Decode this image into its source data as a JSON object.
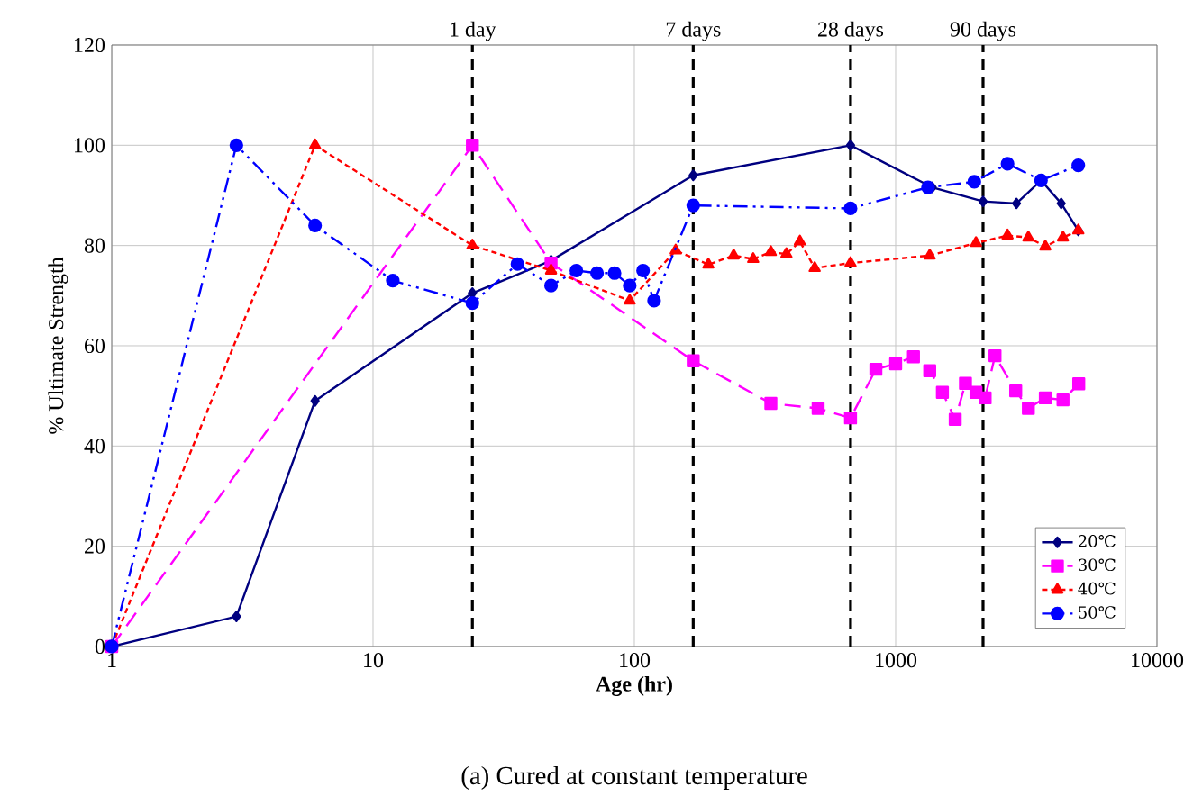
{
  "chart_data": {
    "type": "line",
    "xlabel": "**Age (hr)**",
    "ylabel": "% Ultimate Strength",
    "log": "x",
    "xlim": [
      1,
      10000
    ],
    "xticks": [
      1,
      10,
      100,
      1000,
      10000
    ],
    "ylim": [
      0,
      120
    ],
    "yticks": [
      0,
      20,
      40,
      60,
      80,
      100,
      120
    ],
    "grid": true,
    "legend": "bottom right",
    "series": [
      {
        "name": "20℃",
        "color": "#000080",
        "marker": "diamond",
        "line_style": "solid",
        "x": [
          1,
          3,
          6,
          24,
          48,
          168,
          672,
          1380,
          2160,
          2900,
          3600,
          4300,
          5000
        ],
        "values": [
          0,
          6,
          49,
          70.5,
          77,
          94,
          100,
          91.6,
          88.8,
          88.4,
          93,
          88.4,
          83
        ]
      },
      {
        "name": "30℃",
        "color": "#ff00ff",
        "marker": "square",
        "line_style": "dashed",
        "x": [
          1,
          24,
          48,
          168,
          333,
          505,
          672,
          840,
          1000,
          1170,
          1350,
          1510,
          1690,
          1850,
          2030,
          2200,
          2400,
          2880,
          3220,
          3740,
          4370,
          5020
        ],
        "values": [
          0,
          100,
          76.5,
          57,
          48.5,
          47.5,
          45.6,
          55.3,
          56.4,
          57.8,
          55,
          50.7,
          45.3,
          52.5,
          50.7,
          49.6,
          58,
          51,
          47.5,
          49.6,
          49.2,
          52.4
        ]
      },
      {
        "name": "40℃",
        "color": "#ff0000",
        "marker": "triangle",
        "line_style": "dotted",
        "x": [
          1,
          6,
          24,
          48,
          96,
          144,
          192,
          240,
          285,
          333,
          382,
          430,
          490,
          672,
          1350,
          2030,
          2680,
          3220,
          3740,
          4370,
          5000
        ],
        "values": [
          0,
          100,
          80,
          75,
          69,
          79,
          76.2,
          78,
          77.3,
          78.7,
          78.3,
          80.8,
          75.5,
          76.5,
          78,
          80.5,
          82,
          81.6,
          79.8,
          81.6,
          83
        ]
      },
      {
        "name": "50℃",
        "color": "#0000ff",
        "marker": "circle",
        "line_style": "dashdotdot",
        "x": [
          1,
          3,
          6,
          11.9,
          24,
          35.7,
          48,
          60,
          72,
          84,
          96,
          108,
          119,
          168,
          672,
          1330,
          2000,
          2680,
          3600,
          5000
        ],
        "values": [
          0,
          100,
          84,
          73,
          68.5,
          76.3,
          72,
          75,
          74.5,
          74.5,
          72,
          75,
          69,
          88,
          87.4,
          91.6,
          92.7,
          96.3,
          93,
          96
        ]
      }
    ],
    "ref_lines": [
      {
        "axis": "x",
        "value": 24,
        "label": "1 day",
        "color": "#000000",
        "line_style": "dashed"
      },
      {
        "axis": "x",
        "value": 168,
        "label": "7 days",
        "color": "#000000",
        "line_style": "dashed"
      },
      {
        "axis": "x",
        "value": 672,
        "label": "28 days",
        "color": "#000000",
        "line_style": "dashed"
      },
      {
        "axis": "x",
        "value": 2160,
        "label": "90 days",
        "color": "#000000",
        "line_style": "dashed"
      }
    ],
    "annotations": [
      "(a) Cured at constant temperature"
    ]
  }
}
